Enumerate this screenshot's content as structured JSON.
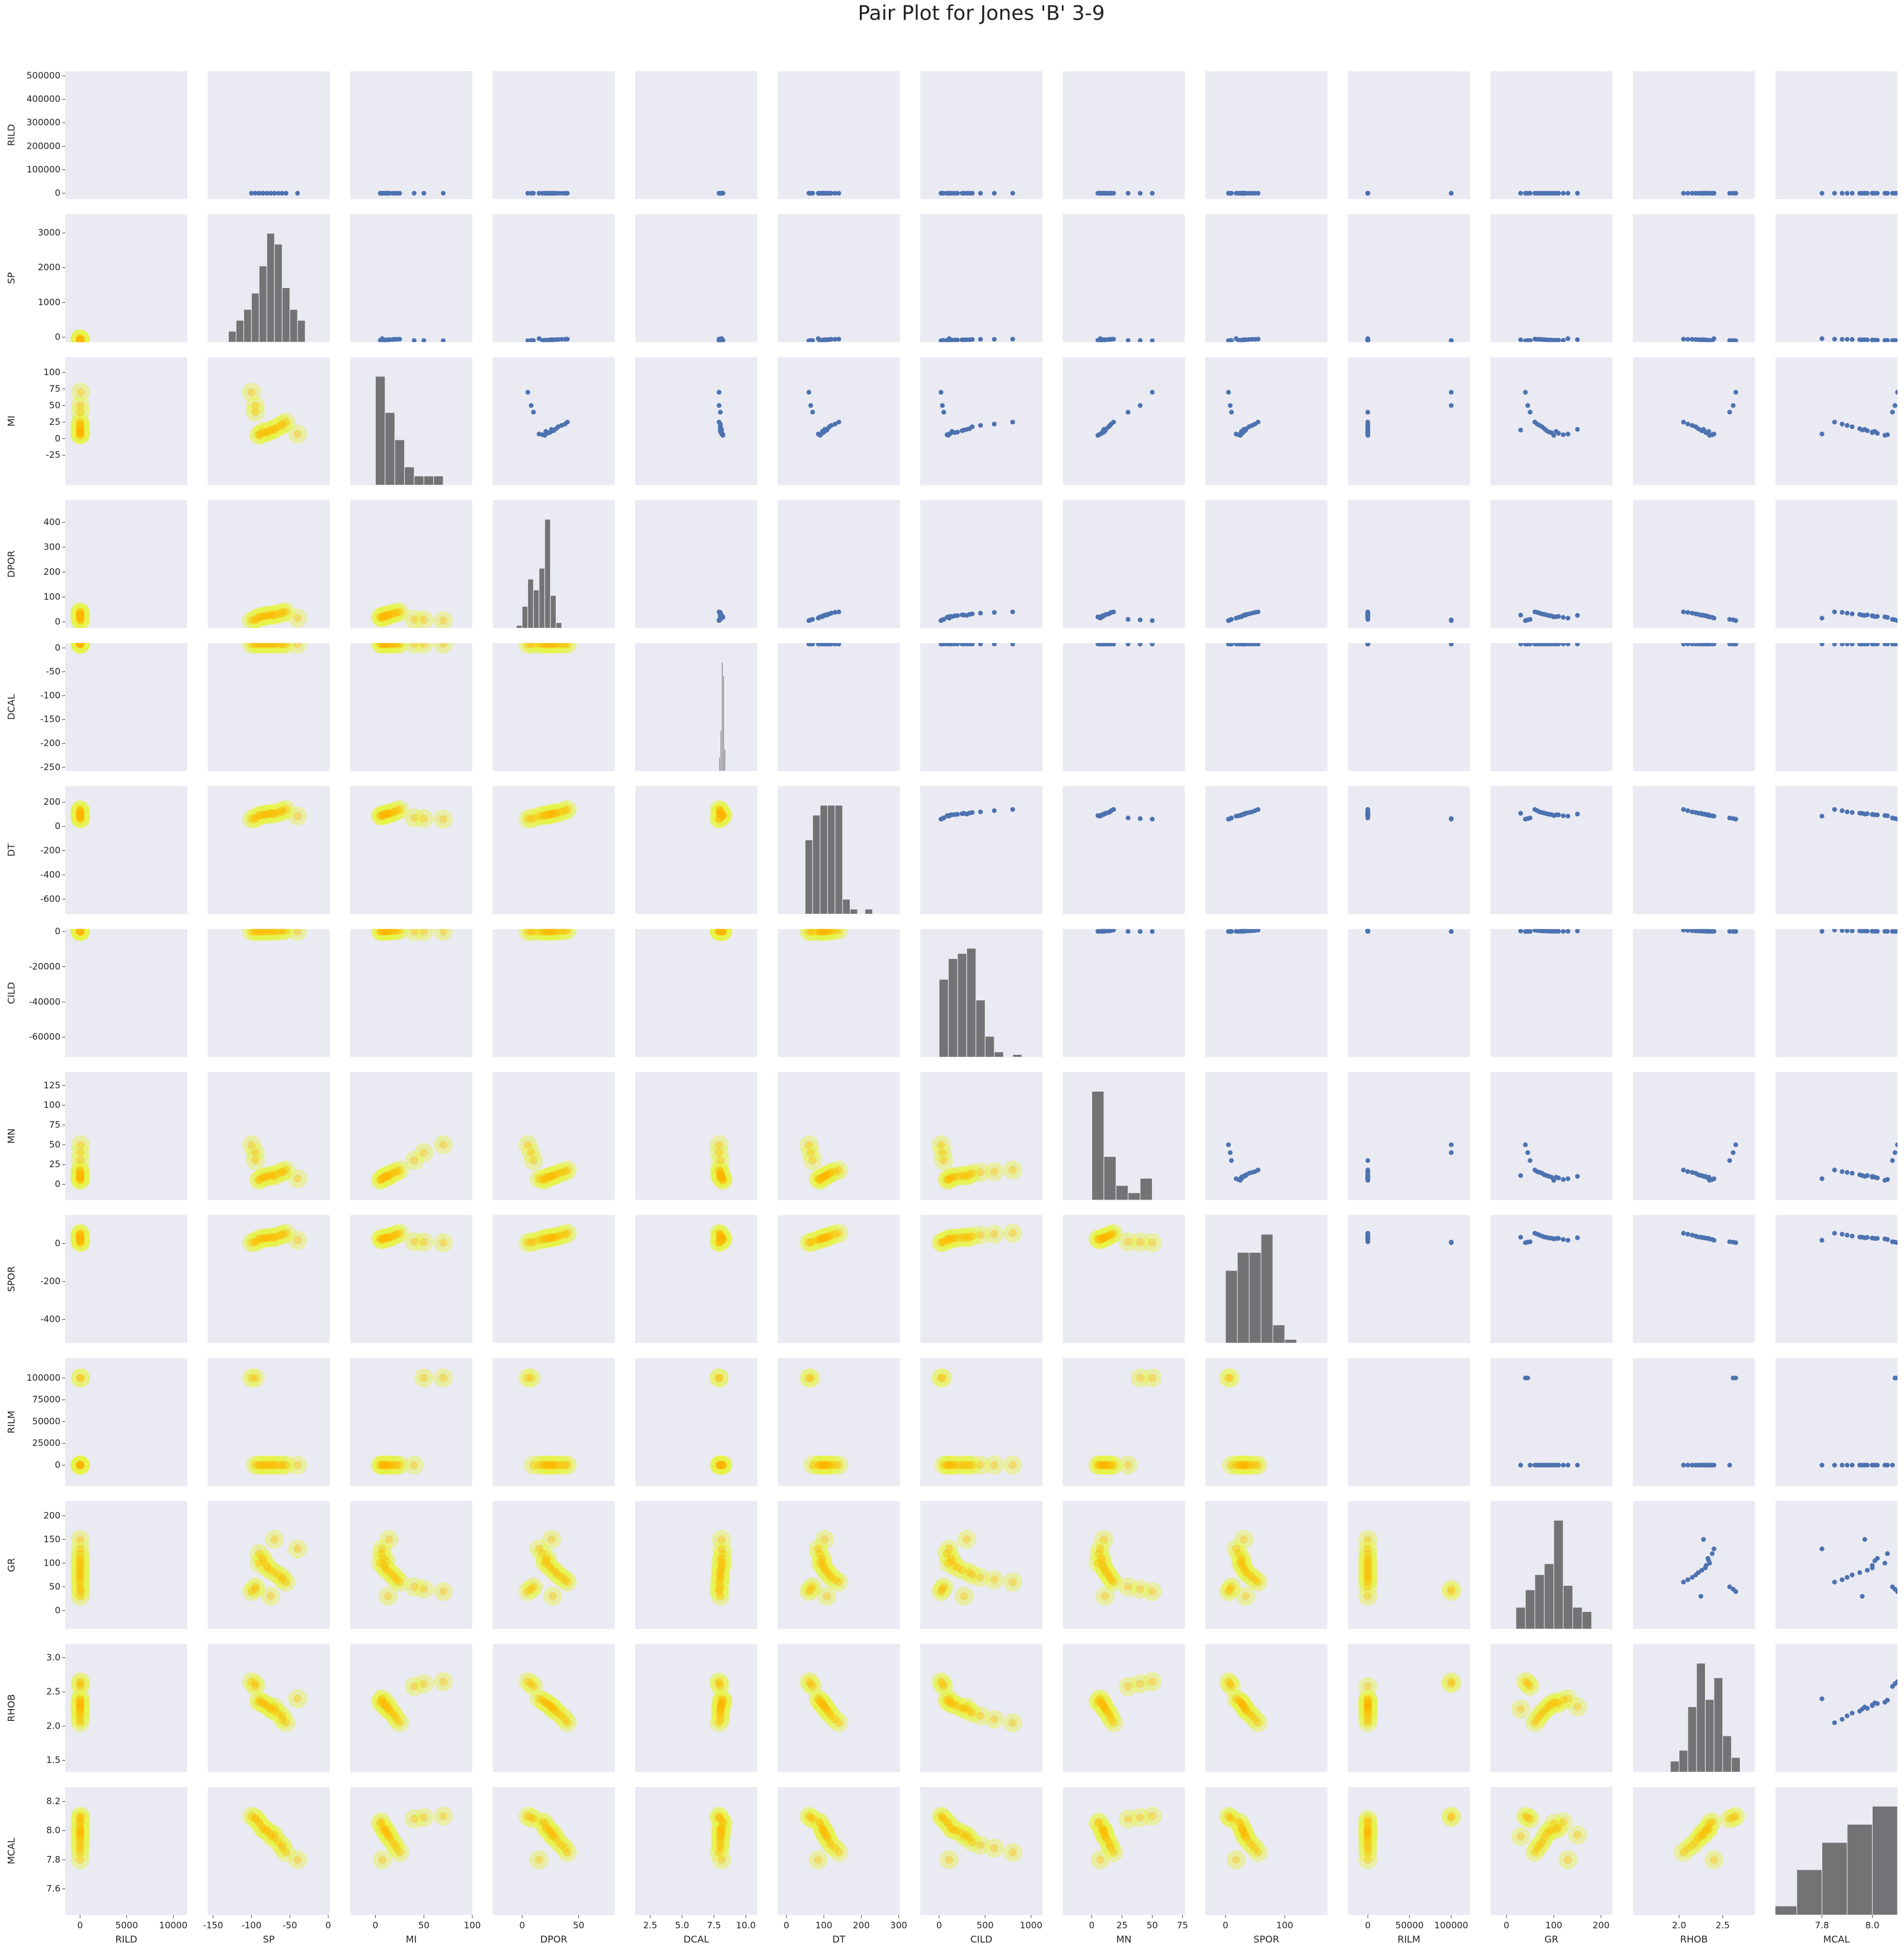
{
  "chart_data": {
    "type": "pairplot",
    "title": "Pair Plot for Jones 'B' 3-9",
    "point_color": "#4c72b0",
    "hist_color": "#555555",
    "kde_colors": [
      "#e6f54a",
      "#ffb400"
    ],
    "panel_color": "#eaeaf2",
    "variables": [
      {
        "name": "RILD",
        "xlim": [
          -1600,
          11500
        ],
        "ylim": [
          -25000,
          520000
        ],
        "xticks": [
          0,
          5000,
          10000
        ],
        "yticks": [
          0,
          100000,
          200000,
          300000,
          400000,
          500000
        ]
      },
      {
        "name": "SP",
        "xlim": [
          -157,
          2
        ],
        "ylim": [
          -140,
          3540
        ],
        "xticks": [
          -150,
          -100,
          -50,
          0
        ],
        "yticks": [
          0,
          1000,
          2000,
          3000
        ],
        "hist": {
          "bins": [
            -130,
            -120,
            -110,
            -100,
            -90,
            -80,
            -70,
            -60,
            -50,
            -40,
            -30
          ],
          "counts": [
            2,
            4,
            6,
            9,
            14,
            20,
            18,
            10,
            6,
            4
          ]
        }
      },
      {
        "name": "MI",
        "xlim": [
          -26,
          100
        ],
        "ylim": [
          -70,
          123
        ],
        "xticks": [
          0,
          50,
          100
        ],
        "yticks": [
          -25,
          0,
          25,
          50,
          75,
          100
        ],
        "hist": {
          "bins": [
            0,
            10,
            20,
            30,
            40,
            50,
            60,
            70
          ],
          "counts": [
            12,
            8,
            5,
            2,
            1,
            1,
            1
          ]
        }
      },
      {
        "name": "DPOR",
        "xlim": [
          -26,
          82
        ],
        "ylim": [
          -25,
          489
        ],
        "xticks": [
          0,
          50
        ],
        "yticks": [
          0,
          100,
          200,
          300,
          400
        ],
        "hist": {
          "bins": [
            -5,
            0,
            5,
            10,
            15,
            20,
            25,
            30,
            35
          ],
          "counts": [
            1,
            8,
            18,
            14,
            22,
            40,
            12,
            2
          ]
        }
      },
      {
        "name": "DCAL",
        "xlim": [
          1.33,
          10.9
        ],
        "ylim": [
          -258,
          10
        ],
        "xticks": [
          2.5,
          {
            "value": 5,
            "label": "5.0"
          },
          7.5,
          {
            "value": 10,
            "label": "10.0"
          }
        ],
        "yticks": [
          -250,
          -200,
          -150,
          -100,
          -50,
          0
        ],
        "hist": {
          "bins": [
            7.9,
            8.0,
            8.1,
            8.2,
            8.3,
            8.4
          ],
          "counts": [
            5,
            15,
            40,
            35,
            8
          ]
        }
      },
      {
        "name": "DT",
        "xlim": [
          -23,
          303
        ],
        "ylim": [
          -723,
          333
        ],
        "xticks": [
          0,
          100,
          200,
          300
        ],
        "yticks": [
          -600,
          -400,
          -200,
          0,
          200
        ],
        "hist": {
          "bins": [
            50,
            70,
            90,
            110,
            130,
            150,
            170,
            190,
            210,
            230
          ],
          "counts": [
            15,
            20,
            22,
            22,
            22,
            3,
            1,
            0,
            1
          ]
        }
      },
      {
        "name": "CILD",
        "xlim": [
          -205,
          1123
        ],
        "ylim": [
          -71300,
          1400
        ],
        "xticks": [
          0,
          500,
          1000
        ],
        "yticks": [
          -60000,
          -40000,
          -20000,
          0
        ],
        "hist": {
          "bins": [
            0,
            100,
            200,
            300,
            400,
            500,
            600,
            700,
            800,
            900
          ],
          "counts": [
            30,
            38,
            40,
            42,
            22,
            8,
            2,
            0,
            1
          ]
        }
      },
      {
        "name": "MN",
        "xlim": [
          -24,
          77
        ],
        "ylim": [
          -20,
          142
        ],
        "xticks": [
          0,
          25,
          50,
          75
        ],
        "yticks": [
          0,
          25,
          50,
          75,
          100,
          125
        ],
        "hist": {
          "bins": [
            0,
            10,
            20,
            30,
            40,
            50
          ],
          "counts": [
            15,
            6,
            2,
            1,
            3
          ]
        }
      },
      {
        "name": "SPOR",
        "xlim": [
          -34,
          172
        ],
        "ylim": [
          -525,
          151
        ],
        "xticks": [
          0,
          100
        ],
        "yticks": [
          -400,
          -200,
          0
        ],
        "hist": {
          "bins": [
            0,
            20,
            40,
            60,
            80,
            100,
            120,
            140
          ],
          "counts": [
            20,
            25,
            25,
            30,
            5,
            1,
            0
          ]
        }
      },
      {
        "name": "RILM",
        "xlim": [
          -23900,
          122400
        ],
        "ylim": [
          -24000,
          122857
        ],
        "xticks": [
          0,
          50000,
          100000
        ],
        "yticks": [
          0,
          25000,
          50000,
          75000,
          100000
        ]
      },
      {
        "name": "GR",
        "xlim": [
          -34,
          224
        ],
        "ylim": [
          -39,
          231
        ],
        "xticks": [
          0,
          100,
          200
        ],
        "yticks": [
          0,
          50,
          100,
          150,
          200
        ],
        "hist": {
          "bins": [
            20,
            40,
            60,
            80,
            100,
            120,
            140,
            160,
            180
          ],
          "counts": [
            10,
            18,
            25,
            30,
            50,
            20,
            10,
            8
          ]
        }
      },
      {
        "name": "RHOB",
        "xlim": [
          1.47,
          2.87
        ],
        "ylim": [
          1.33,
          3.2
        ],
        "xticks": [
          {
            "value": 2,
            "label": "2.0"
          },
          2.5
        ],
        "yticks": [
          1.5,
          {
            "value": 2,
            "label": "2.0"
          },
          2.5,
          {
            "value": 3,
            "label": "3.0"
          }
        ],
        "hist": {
          "bins": [
            1.9,
            2.0,
            2.1,
            2.2,
            2.3,
            2.4,
            2.5,
            2.6,
            2.7
          ],
          "counts": [
            3,
            6,
            18,
            30,
            20,
            26,
            10,
            4
          ]
        }
      },
      {
        "name": "MCAL",
        "xlim": [
          7.615,
          8.1
        ],
        "ylim": [
          7.42,
          8.3
        ],
        "xticks": [
          7.8,
          {
            "value": 8,
            "label": "8.0"
          }
        ],
        "yticks": [
          7.6,
          7.8,
          {
            "value": 8,
            "label": "8.0"
          },
          8.2
        ],
        "hist": {
          "bins": [
            7.6,
            7.7,
            7.8,
            7.9,
            8.0,
            8.1
          ],
          "counts": [
            1,
            5,
            8,
            10,
            12
          ]
        }
      }
    ],
    "samples": [
      [
        5,
        -80,
        10,
        25,
        8.1,
        100,
        200,
        10,
        30,
        10,
        90,
        2.3,
        8.0
      ],
      [
        3,
        -70,
        15,
        30,
        8.0,
        110,
        330,
        12,
        35,
        5,
        80,
        2.22,
        7.95
      ],
      [
        10,
        -90,
        5,
        20,
        8.2,
        90,
        100,
        5,
        25,
        15,
        100,
        2.35,
        8.05
      ],
      [
        2,
        -60,
        20,
        35,
        8.0,
        120,
        450,
        15,
        45,
        3,
        70,
        2.15,
        7.9
      ],
      [
        50,
        -100,
        70,
        5,
        7.9,
        60,
        20,
        50,
        5,
        100000,
        40,
        2.65,
        8.1
      ],
      [
        8,
        -85,
        8,
        22,
        8.1,
        95,
        125,
        8,
        28,
        12,
        110,
        2.33,
        8.02
      ],
      [
        4,
        -75,
        12,
        28,
        8.0,
        105,
        250,
        11,
        33,
        7,
        85,
        2.26,
        7.98
      ],
      [
        1,
        -55,
        25,
        40,
        7.9,
        140,
        800,
        18,
        55,
        2,
        60,
        2.05,
        7.85
      ],
      [
        20,
        -95,
        40,
        10,
        8.0,
        70,
        50,
        30,
        10,
        25,
        50,
        2.58,
        8.08
      ],
      [
        6,
        -80,
        9,
        24,
        8.1,
        98,
        170,
        9,
        29,
        11,
        95,
        2.31,
        8.0
      ],
      [
        3,
        -65,
        18,
        32,
        8.0,
        115,
        360,
        14,
        40,
        4,
        75,
        2.19,
        7.92
      ],
      [
        12,
        -90,
        6,
        18,
        8.2,
        88,
        85,
        6,
        22,
        14,
        120,
        2.38,
        8.06
      ],
      [
        2,
        -70,
        14,
        26,
        8.1,
        102,
        300,
        10,
        31,
        6,
        150,
        2.28,
        7.97
      ],
      [
        30,
        -95,
        50,
        8,
        7.9,
        65,
        35,
        40,
        8,
        100000,
        45,
        2.62,
        8.09
      ],
      [
        7,
        -85,
        11,
        21,
        8.0,
        96,
        140,
        9,
        27,
        10,
        105,
        2.34,
        8.01
      ],
      [
        2,
        -60,
        22,
        38,
        8.0,
        130,
        600,
        16,
        50,
        3,
        65,
        2.1,
        7.88
      ],
      [
        9,
        -40,
        7,
        15,
        8.1,
        85,
        110,
        7,
        18,
        13,
        130,
        2.4,
        7.8
      ],
      [
        4,
        -75,
        13,
        27,
        8.0,
        108,
        270,
        11,
        34,
        6,
        30,
        2.25,
        7.96
      ]
    ]
  }
}
